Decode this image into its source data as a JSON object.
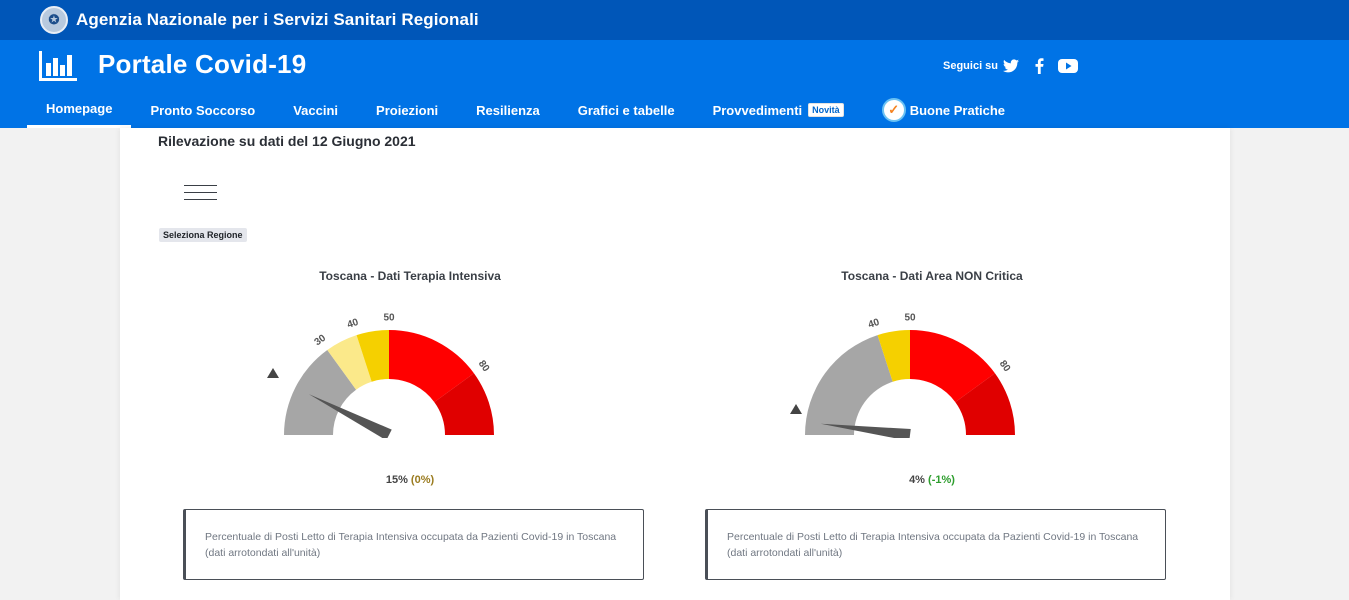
{
  "topbar": {
    "agency_name": "Agenzia Nazionale per i Servizi Sanitari Regionali"
  },
  "header": {
    "portal_title": "Portale Covid-19",
    "follow_label": "Seguici su",
    "social": [
      "twitter-icon",
      "facebook-icon",
      "youtube-icon"
    ]
  },
  "nav": {
    "items": [
      "Homepage",
      "Pronto Soccorso",
      "Vaccini",
      "Proiezioni",
      "Resilienza",
      "Grafici e tabelle",
      "Provvedimenti",
      "Buone Pratiche"
    ],
    "active": "Homepage",
    "badge": "Novità"
  },
  "main": {
    "survey_date": "Rilevazione su dati del 12 Giugno 2021",
    "select_region": "Seleziona Regione",
    "gauges": [
      {
        "title": "Toscana - Dati Terapia Intensiva",
        "value": 15,
        "value_label": "15%",
        "diff_label": "(0%)",
        "ticks": [
          "30",
          "40",
          "50",
          "80"
        ],
        "description": "Percentuale di Posti Letto di Terapia Intensiva occupata da Pazienti Covid-19 in Toscana (dati arrotondati all'unità)"
      },
      {
        "title": "Toscana - Dati Area NON Critica",
        "value": 4,
        "value_label": "4%",
        "diff_label": "(-1%)",
        "ticks": [
          "40",
          "50",
          "80"
        ],
        "description": "Percentuale di Posti Letto di Terapia Intensiva occupata da Pazienti Covid-19 in Toscana (dati arrotondati all'unità)"
      }
    ]
  },
  "colors": {
    "topbar": "#0056b8",
    "header": "#0073e6",
    "gauge_gray": "#a6a6a6",
    "gauge_light_yellow": "#fbe98a",
    "gauge_yellow": "#f5d000",
    "gauge_red": "#ff0000",
    "gauge_dark_red": "#e00000"
  }
}
